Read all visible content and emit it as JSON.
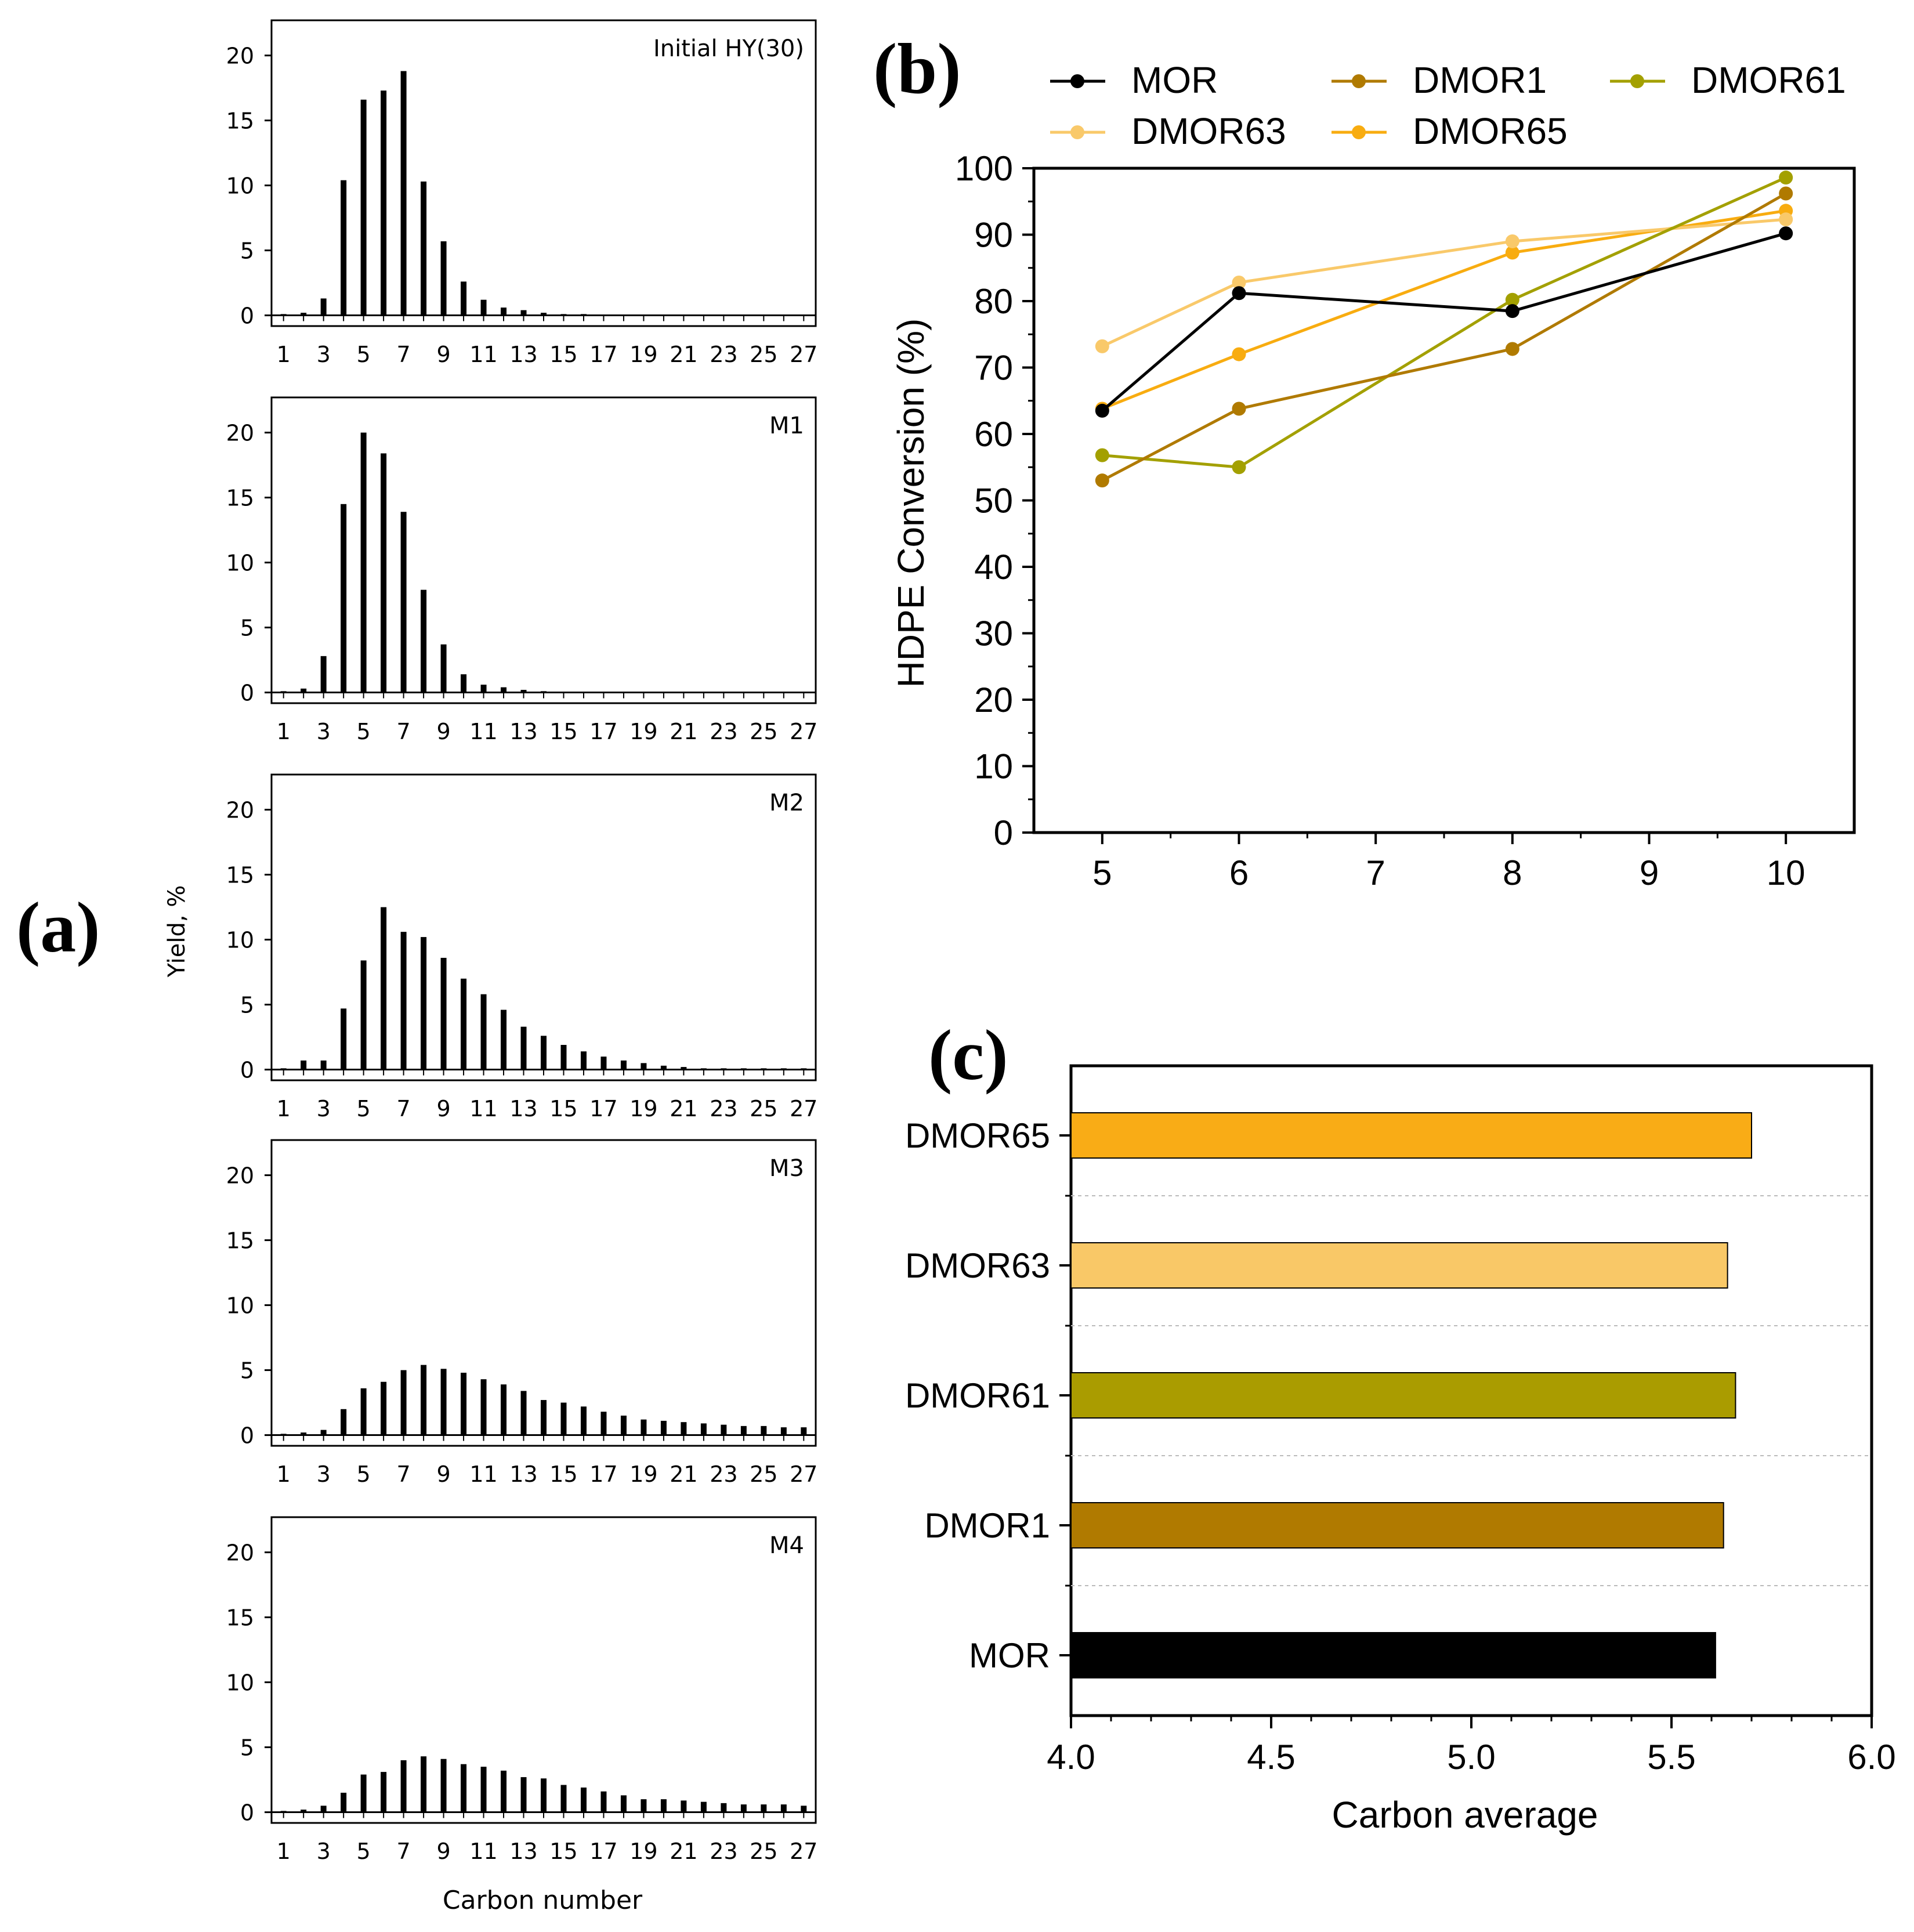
{
  "figure_labels": {
    "a": "(a)",
    "b": "(b)",
    "c": "(c)"
  },
  "chart_data": [
    {
      "id": "a",
      "type": "bar",
      "xlabel": "Carbon number",
      "ylabel": "Yield, %",
      "ylim": [
        0,
        22
      ],
      "yticks": [
        0,
        5,
        10,
        15,
        20
      ],
      "x_tick_labels": [
        "1",
        "3",
        "5",
        "7",
        "9",
        "11",
        "13",
        "15",
        "17",
        "19",
        "21",
        "23",
        "25",
        "27"
      ],
      "categories": [
        1,
        2,
        3,
        4,
        5,
        6,
        7,
        8,
        9,
        10,
        11,
        12,
        13,
        14,
        15,
        16,
        17,
        18,
        19,
        20,
        21,
        22,
        23,
        24,
        25,
        26,
        27
      ],
      "series": [
        {
          "name": "Initial HY(30)",
          "values": [
            0.1,
            0.2,
            1.3,
            10.4,
            16.6,
            17.3,
            18.8,
            10.3,
            5.7,
            2.6,
            1.2,
            0.6,
            0.4,
            0.2,
            0.1,
            0.1,
            0.05,
            0.05,
            0.05,
            0.05,
            0.05,
            0.05,
            0.05,
            0.05,
            0.05,
            0.05,
            0.05
          ]
        },
        {
          "name": "M1",
          "values": [
            0.1,
            0.3,
            2.8,
            14.5,
            20.0,
            18.4,
            13.9,
            7.9,
            3.7,
            1.4,
            0.6,
            0.4,
            0.2,
            0.1,
            0.05,
            0.05,
            0.05,
            0.05,
            0.05,
            0.05,
            0.05,
            0.05,
            0.05,
            0.05,
            0.05,
            0.05,
            0.05
          ]
        },
        {
          "name": "M2",
          "values": [
            0.1,
            0.7,
            0.7,
            4.7,
            8.4,
            12.5,
            10.6,
            10.2,
            8.6,
            7.0,
            5.8,
            4.6,
            3.3,
            2.6,
            1.9,
            1.4,
            1.0,
            0.7,
            0.5,
            0.3,
            0.2,
            0.1,
            0.1,
            0.1,
            0.1,
            0.1,
            0.1
          ]
        },
        {
          "name": "M3",
          "values": [
            0.1,
            0.2,
            0.4,
            2.0,
            3.6,
            4.1,
            5.0,
            5.4,
            5.1,
            4.8,
            4.3,
            3.9,
            3.4,
            2.7,
            2.5,
            2.2,
            1.8,
            1.5,
            1.2,
            1.1,
            1.0,
            0.9,
            0.8,
            0.7,
            0.7,
            0.6,
            0.6
          ]
        },
        {
          "name": "M4",
          "values": [
            0.1,
            0.2,
            0.5,
            1.5,
            2.9,
            3.1,
            4.0,
            4.3,
            4.1,
            3.7,
            3.5,
            3.2,
            2.7,
            2.6,
            2.1,
            1.9,
            1.6,
            1.3,
            1.0,
            1.0,
            0.9,
            0.8,
            0.7,
            0.6,
            0.6,
            0.6,
            0.5
          ]
        }
      ]
    },
    {
      "id": "b",
      "type": "line",
      "xlabel": "",
      "ylabel": "HDPE Conversion (%)",
      "xlim": [
        4.5,
        10.5
      ],
      "ylim": [
        0,
        100
      ],
      "xticks": [
        5,
        6,
        7,
        8,
        9,
        10
      ],
      "yticks": [
        0,
        10,
        20,
        30,
        40,
        50,
        60,
        70,
        80,
        90,
        100
      ],
      "legend": "top",
      "series": [
        {
          "name": "MOR",
          "color": "#000000",
          "x": [
            5,
            6,
            8,
            10
          ],
          "y": [
            63.5,
            81.2,
            78.5,
            90.2
          ]
        },
        {
          "name": "DMOR1",
          "color": "#b07a00",
          "x": [
            5,
            6,
            8,
            10
          ],
          "y": [
            53.0,
            63.8,
            72.8,
            96.2
          ]
        },
        {
          "name": "DMOR61",
          "color": "#a3a000",
          "x": [
            5,
            6,
            8,
            10
          ],
          "y": [
            56.8,
            55.0,
            80.2,
            98.6
          ]
        },
        {
          "name": "DMOR63",
          "color": "#f9c96a",
          "x": [
            5,
            6,
            8,
            10
          ],
          "y": [
            73.2,
            82.8,
            89.0,
            92.3
          ]
        },
        {
          "name": "DMOR65",
          "color": "#f8ac10",
          "x": [
            5,
            6,
            8,
            10
          ],
          "y": [
            63.8,
            72.0,
            87.3,
            93.6
          ]
        }
      ]
    },
    {
      "id": "c",
      "type": "bar",
      "orientation": "horizontal",
      "xlabel": "Carbon average",
      "xlim": [
        4.0,
        6.0
      ],
      "xticks": [
        "4.0",
        "4.5",
        "5.0",
        "5.5",
        "6.0"
      ],
      "categories": [
        "DMOR65",
        "DMOR63",
        "DMOR61",
        "DMOR1",
        "MOR"
      ],
      "values": [
        5.7,
        5.64,
        5.66,
        5.63,
        5.61
      ],
      "colors": [
        "#f9ac16",
        "#f9c867",
        "#aa9c00",
        "#b07a00",
        "#000000"
      ]
    }
  ]
}
